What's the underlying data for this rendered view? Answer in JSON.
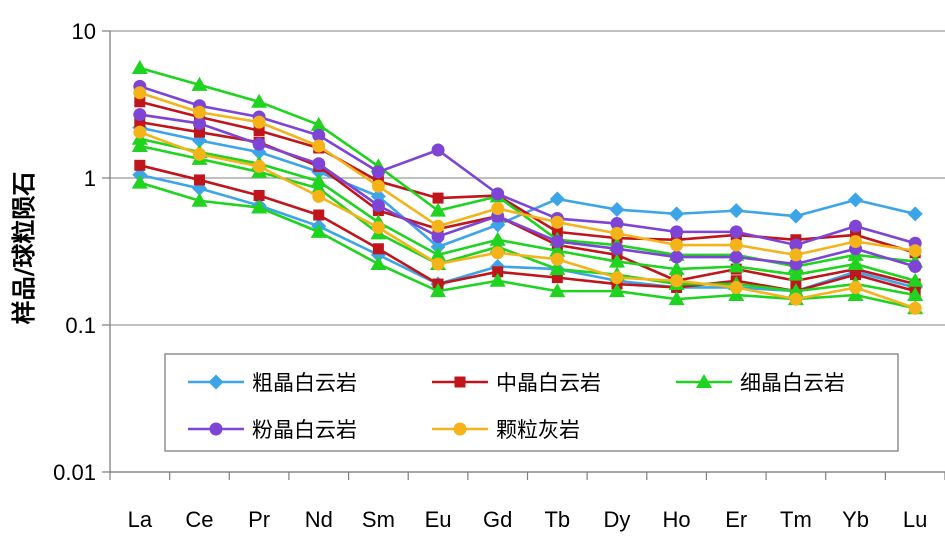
{
  "chart_data": {
    "type": "line",
    "title": "",
    "xlabel": "",
    "ylabel": "样品/球粒陨石",
    "yscale": "log",
    "ylim": [
      0.01,
      10
    ],
    "yticks": [
      "0.01",
      "0.1",
      "1",
      "10"
    ],
    "grid": "horizontal",
    "legend_position": "inside-lower-center",
    "categories": [
      "La",
      "Ce",
      "Pr",
      "Nd",
      "Sm",
      "Eu",
      "Gd",
      "Tb",
      "Dy",
      "Ho",
      "Er",
      "Tm",
      "Yb",
      "Lu"
    ],
    "groups": [
      {
        "name": "粗晶白云岩",
        "color": "#3ba5e8",
        "marker": "diamond",
        "lines": [
          [
            2.2,
            1.8,
            1.5,
            1.1,
            0.75,
            0.34,
            0.48,
            0.72,
            0.61,
            0.57,
            0.6,
            0.55,
            0.71,
            0.57
          ],
          [
            1.05,
            0.85,
            0.65,
            0.47,
            0.3,
            0.19,
            0.25,
            0.24,
            0.2,
            0.18,
            0.18,
            0.17,
            0.23,
            0.18
          ]
        ]
      },
      {
        "name": "中晶白云岩",
        "color": "#c0151b",
        "marker": "square",
        "lines": [
          [
            3.3,
            2.6,
            2.1,
            1.6,
            0.95,
            0.73,
            0.76,
            0.43,
            0.39,
            0.38,
            0.41,
            0.38,
            0.41,
            0.31
          ],
          [
            2.4,
            2.05,
            1.75,
            1.2,
            0.6,
            0.45,
            0.55,
            0.35,
            0.3,
            0.2,
            0.24,
            0.2,
            0.24,
            0.19
          ],
          [
            1.22,
            0.97,
            0.76,
            0.56,
            0.33,
            0.19,
            0.23,
            0.21,
            0.19,
            0.18,
            0.2,
            0.17,
            0.22,
            0.17
          ]
        ]
      },
      {
        "name": "细晶白云岩",
        "color": "#1ed41e",
        "marker": "triangle",
        "lines": [
          [
            5.6,
            4.3,
            3.3,
            2.3,
            1.2,
            0.6,
            0.75,
            0.38,
            0.35,
            0.3,
            0.3,
            0.25,
            0.3,
            0.27
          ],
          [
            1.85,
            1.5,
            1.25,
            0.95,
            0.5,
            0.3,
            0.38,
            0.32,
            0.27,
            0.24,
            0.25,
            0.22,
            0.26,
            0.2
          ],
          [
            1.65,
            1.35,
            1.1,
            0.85,
            0.42,
            0.26,
            0.34,
            0.24,
            0.22,
            0.19,
            0.19,
            0.17,
            0.19,
            0.16
          ],
          [
            0.93,
            0.7,
            0.63,
            0.43,
            0.26,
            0.17,
            0.2,
            0.17,
            0.17,
            0.15,
            0.16,
            0.15,
            0.16,
            0.13
          ]
        ]
      },
      {
        "name": "粉晶白云岩",
        "color": "#7d44d6",
        "marker": "circle",
        "lines": [
          [
            4.2,
            3.1,
            2.6,
            1.95,
            1.1,
            1.55,
            0.78,
            0.53,
            0.49,
            0.43,
            0.43,
            0.35,
            0.47,
            0.36
          ],
          [
            2.7,
            2.35,
            1.7,
            1.25,
            0.65,
            0.4,
            0.55,
            0.37,
            0.33,
            0.29,
            0.29,
            0.26,
            0.33,
            0.25
          ]
        ]
      },
      {
        "name": "颗粒灰岩",
        "color": "#f5b31a",
        "marker": "circle",
        "lines": [
          [
            3.8,
            2.8,
            2.4,
            1.65,
            0.88,
            0.47,
            0.62,
            0.5,
            0.42,
            0.35,
            0.35,
            0.3,
            0.37,
            0.32
          ],
          [
            2.05,
            1.45,
            1.2,
            0.75,
            0.46,
            0.26,
            0.31,
            0.28,
            0.21,
            0.2,
            0.18,
            0.15,
            0.18,
            0.13
          ]
        ]
      }
    ]
  }
}
